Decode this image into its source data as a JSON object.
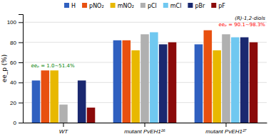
{
  "chart_data": {
    "type": "bar",
    "ylabel": "ee_p (%)",
    "categories": [
      "WT",
      "mutant PvEH1²⁶",
      "mutant PvEH1²⁷"
    ],
    "series": [
      {
        "name": "H",
        "color": "#3060c0",
        "values": [
          42,
          82,
          78
        ]
      },
      {
        "name": "pNO₂",
        "color": "#e85010",
        "values": [
          52,
          82,
          92
        ]
      },
      {
        "name": "mNO₂",
        "color": "#e8b800",
        "values": [
          52,
          72,
          72
        ]
      },
      {
        "name": "pCl",
        "color": "#b0b0b0",
        "values": [
          18,
          88,
          88
        ]
      },
      {
        "name": "mCl",
        "color": "#70c8f0",
        "values": [
          null,
          90,
          85
        ]
      },
      {
        "name": "pBr",
        "color": "#1a2870",
        "values": [
          42,
          78,
          85
        ]
      },
      {
        "name": "pF",
        "color": "#8b0a0a",
        "values": [
          15,
          80,
          80
        ]
      }
    ],
    "annotations": [
      {
        "text": "eeₚ = 1.0~51.4%",
        "color": "green"
      },
      {
        "text": "(R)-1,2-diols",
        "color": "black"
      },
      {
        "text": "eeₚ = 90.1~98.3%",
        "color": "red"
      }
    ],
    "ylim": [
      0,
      108
    ],
    "yticks": [
      0,
      20,
      40,
      60,
      80,
      100
    ],
    "grid": true,
    "legend": "top"
  }
}
